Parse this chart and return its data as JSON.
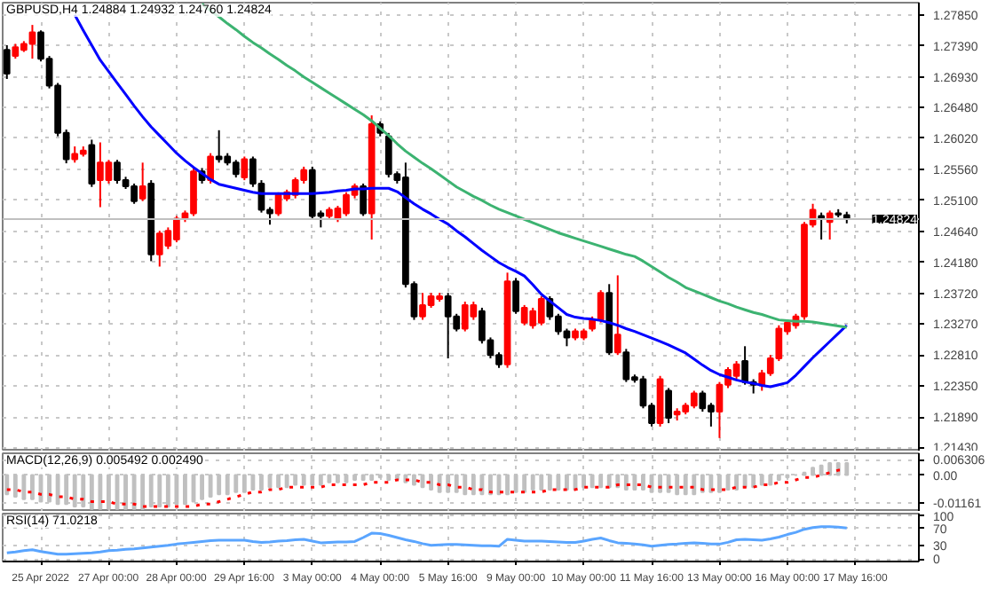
{
  "chart_data": [
    {
      "type": "candlestick",
      "title": "GBPUSD,H4 1.24884 1.24932 1.24760 1.24824",
      "categories": [
        null,
        null,
        null,
        null,
        null,
        null,
        null,
        null,
        null,
        null,
        null,
        null,
        null,
        null,
        null,
        null,
        null,
        null,
        null,
        null,
        null,
        null,
        null,
        null,
        null,
        null,
        null,
        null,
        null,
        null,
        null,
        null,
        null,
        null,
        null,
        null,
        null,
        null,
        null,
        null,
        null,
        null,
        null,
        null,
        null,
        null,
        null,
        null,
        null,
        null,
        null,
        null,
        null,
        null,
        null,
        null,
        null,
        null,
        null,
        null,
        null,
        null,
        null,
        null,
        null,
        null,
        null,
        null,
        null,
        null,
        null,
        null,
        null,
        null,
        null,
        null,
        null,
        null,
        null,
        null,
        null,
        null,
        null,
        null,
        null,
        null,
        null,
        null,
        null,
        null,
        null,
        null,
        null,
        null,
        null,
        null,
        null,
        null,
        null,
        null,
        null,
        null,
        null,
        null,
        null,
        null,
        null,
        null
      ],
      "ohlc": [
        [
          1.2733,
          1.274,
          1.269,
          1.2698
        ],
        [
          1.2724,
          1.2742,
          1.272,
          1.2737
        ],
        [
          1.2733,
          1.2746,
          1.273,
          1.2742
        ],
        [
          1.2742,
          1.277,
          1.272,
          1.2759
        ],
        [
          1.2759,
          1.2762,
          1.2716,
          1.272
        ],
        [
          1.272,
          1.2724,
          1.2676,
          1.268
        ],
        [
          1.268,
          1.2684,
          1.2605,
          1.261
        ],
        [
          1.261,
          1.2615,
          1.2565,
          1.2571
        ],
        [
          1.2571,
          1.259,
          1.2566,
          1.2579
        ],
        [
          1.2579,
          1.259,
          1.2575,
          1.2584
        ],
        [
          1.2592,
          1.26,
          1.253,
          1.2535
        ],
        [
          1.254,
          1.2596,
          1.25,
          1.2566
        ],
        [
          1.254,
          1.257,
          1.2535,
          1.2566
        ],
        [
          1.2566,
          1.257,
          1.2535,
          1.254
        ],
        [
          1.254,
          1.2545,
          1.2527,
          1.2531
        ],
        [
          1.2531,
          1.2535,
          1.2505,
          1.2509
        ],
        [
          1.2513,
          1.2566,
          1.2509,
          1.2531
        ],
        [
          1.2535,
          1.254,
          1.242,
          1.243
        ],
        [
          1.243,
          1.2465,
          1.2412,
          1.2461
        ],
        [
          1.2443,
          1.247,
          1.2438,
          1.2465
        ],
        [
          1.2452,
          1.2487,
          1.2448,
          1.2483
        ],
        [
          1.2483,
          1.2495,
          1.2478,
          1.2491
        ],
        [
          1.2491,
          1.2558,
          1.2487,
          1.2553
        ],
        [
          1.2553,
          1.2558,
          1.2535,
          1.254
        ],
        [
          1.254,
          1.258,
          1.2535,
          1.2575
        ],
        [
          1.2575,
          1.2614,
          1.2566,
          1.2571
        ],
        [
          1.2575,
          1.258,
          1.2562,
          1.2566
        ],
        [
          1.2566,
          1.257,
          1.2544,
          1.2549
        ],
        [
          1.2544,
          1.2575,
          1.254,
          1.2571
        ],
        [
          1.2571,
          1.2575,
          1.253,
          1.2535
        ],
        [
          1.2535,
          1.254,
          1.2492,
          1.2496
        ],
        [
          1.2496,
          1.25,
          1.2474,
          1.2491
        ],
        [
          1.2491,
          1.2522,
          1.2487,
          1.2518
        ],
        [
          1.2513,
          1.2526,
          1.2509,
          1.2522
        ],
        [
          1.2518,
          1.2544,
          1.2513,
          1.254
        ],
        [
          1.254,
          1.256,
          1.2535,
          1.2555
        ],
        [
          1.2555,
          1.256,
          1.2483,
          1.2487
        ],
        [
          1.2491,
          1.2495,
          1.247,
          1.2487
        ],
        [
          1.2487,
          1.25,
          1.2483,
          1.2496
        ],
        [
          1.2483,
          1.2502,
          1.2478,
          1.2498
        ],
        [
          1.2491,
          1.2522,
          1.2487,
          1.2518
        ],
        [
          1.2518,
          1.2535,
          1.2513,
          1.2531
        ],
        [
          1.2531,
          1.2535,
          1.2487,
          1.2491
        ],
        [
          1.2491,
          1.2636,
          1.2452,
          1.2623
        ],
        [
          1.2623,
          1.2627,
          1.2605,
          1.261
        ],
        [
          1.2605,
          1.261,
          1.2544,
          1.2549
        ],
        [
          1.2549,
          1.2553,
          1.2535,
          1.254
        ],
        [
          1.2544,
          1.2566,
          1.2381,
          1.2386
        ],
        [
          1.2386,
          1.239,
          1.2333,
          1.2338
        ],
        [
          1.2338,
          1.2373,
          1.2333,
          1.2355
        ],
        [
          1.2355,
          1.2373,
          1.2351,
          1.2368
        ],
        [
          1.2364,
          1.2373,
          1.236,
          1.2368
        ],
        [
          1.2368,
          1.2373,
          1.2276,
          1.2338
        ],
        [
          1.2338,
          1.2342,
          1.2316,
          1.232
        ],
        [
          1.232,
          1.236,
          1.2316,
          1.2355
        ],
        [
          1.2338,
          1.236,
          1.2333,
          1.2355
        ],
        [
          1.2346,
          1.2351,
          1.2298,
          1.2303
        ],
        [
          1.2303,
          1.2307,
          1.2276,
          1.2281
        ],
        [
          1.2281,
          1.2285,
          1.2262,
          1.2267
        ],
        [
          1.2267,
          1.2403,
          1.2262,
          1.239
        ],
        [
          1.239,
          1.2395,
          1.2342,
          1.2346
        ],
        [
          1.2329,
          1.2355,
          1.2325,
          1.2351
        ],
        [
          1.2325,
          1.2351,
          1.232,
          1.2346
        ],
        [
          1.2329,
          1.2368,
          1.2325,
          1.2364
        ],
        [
          1.2364,
          1.2368,
          1.2333,
          1.2338
        ],
        [
          1.2338,
          1.2342,
          1.2311,
          1.2316
        ],
        [
          1.2316,
          1.232,
          1.2294,
          1.2307
        ],
        [
          1.2307,
          1.232,
          1.2303,
          1.2316
        ],
        [
          1.2307,
          1.232,
          1.2303,
          1.2316
        ],
        [
          1.232,
          1.2338,
          1.2316,
          1.2333
        ],
        [
          1.2333,
          1.2377,
          1.2329,
          1.2373
        ],
        [
          1.2373,
          1.2386,
          1.2281,
          1.2285
        ],
        [
          1.2285,
          1.2399,
          1.2281,
          1.2311
        ],
        [
          1.2285,
          1.229,
          1.2241,
          1.2245
        ],
        [
          1.2248,
          1.2252,
          1.224,
          1.2244
        ],
        [
          1.2245,
          1.225,
          1.2202,
          1.2206
        ],
        [
          1.2206,
          1.221,
          1.2175,
          1.218
        ],
        [
          1.218,
          1.225,
          1.2175,
          1.2245
        ],
        [
          1.2228,
          1.2232,
          1.218,
          1.2188
        ],
        [
          1.2193,
          1.2202,
          1.2184,
          1.2197
        ],
        [
          1.2197,
          1.221,
          1.2193,
          1.2206
        ],
        [
          1.2206,
          1.2228,
          1.2202,
          1.2224
        ],
        [
          1.2224,
          1.2228,
          1.2197,
          1.2202
        ],
        [
          1.2206,
          1.221,
          1.2175,
          1.2197
        ],
        [
          1.2197,
          1.2241,
          1.2158,
          1.2237
        ],
        [
          1.2237,
          1.2263,
          1.2232,
          1.2259
        ],
        [
          1.225,
          1.2272,
          1.2245,
          1.2267
        ],
        [
          1.2272,
          1.2294,
          1.2237,
          1.2241
        ],
        [
          1.2241,
          1.2245,
          1.2224,
          1.2237
        ],
        [
          1.2237,
          1.2259,
          1.2228,
          1.2254
        ],
        [
          1.2254,
          1.2281,
          1.225,
          1.2276
        ],
        [
          1.2276,
          1.2325,
          1.2272,
          1.232
        ],
        [
          1.2316,
          1.2333,
          1.2311,
          1.2329
        ],
        [
          1.2325,
          1.2342,
          1.232,
          1.2338
        ],
        [
          1.2338,
          1.2478,
          1.2333,
          1.2474
        ],
        [
          1.2474,
          1.2505,
          1.247,
          1.2496
        ],
        [
          1.2487,
          1.2492,
          1.2452,
          1.2483
        ],
        [
          1.2478,
          1.2495,
          1.2452,
          1.2491
        ],
        [
          1.2491,
          1.2497,
          1.2485,
          1.2489
        ],
        [
          1.24884,
          1.24932,
          1.2476,
          1.24824
        ],
        null,
        null,
        null,
        null,
        null,
        null,
        null,
        null
      ],
      "colors": [
        "#000000",
        "#ff0000",
        "#ff0000",
        "#ff0000",
        "#000000",
        "#000000",
        "#000000",
        "#000000",
        "#ff0000",
        "#ff0000",
        "#000000",
        "#ff0000",
        "#ff0000",
        "#000000",
        "#000000",
        "#000000",
        "#ff0000",
        "#000000",
        "#ff0000",
        "#ff0000",
        "#ff0000",
        "#ff0000",
        "#ff0000",
        "#000000",
        "#ff0000",
        "#000000",
        "#000000",
        "#000000",
        "#ff0000",
        "#000000",
        "#000000",
        "#000000",
        "#ff0000",
        "#ff0000",
        "#ff0000",
        "#ff0000",
        "#000000",
        "#000000",
        "#ff0000",
        "#ff0000",
        "#ff0000",
        "#ff0000",
        "#000000",
        "#ff0000",
        "#000000",
        "#000000",
        "#000000",
        "#000000",
        "#000000",
        "#ff0000",
        "#ff0000",
        "#ff0000",
        "#000000",
        "#000000",
        "#ff0000",
        "#ff0000",
        "#000000",
        "#000000",
        "#000000",
        "#ff0000",
        "#000000",
        "#ff0000",
        "#ff0000",
        "#ff0000",
        "#000000",
        "#000000",
        "#000000",
        "#ff0000",
        "#ff0000",
        "#ff0000",
        "#ff0000",
        "#000000",
        "#ff0000",
        "#000000",
        "#000000",
        "#000000",
        "#000000",
        "#ff0000",
        "#000000",
        "#ff0000",
        "#ff0000",
        "#ff0000",
        "#000000",
        "#000000",
        "#ff0000",
        "#ff0000",
        "#ff0000",
        "#000000",
        "#000000",
        "#ff0000",
        "#ff0000",
        "#ff0000",
        "#ff0000",
        "#ff0000",
        "#ff0000",
        "#ff0000",
        "#000000",
        "#ff0000",
        "#000000",
        "#000000",
        null,
        null,
        null,
        null,
        null,
        null,
        null,
        null
      ],
      "series": [
        {
          "type": "line",
          "color": "#0000ff",
          "values": [
            null,
            null,
            null,
            null,
            null,
            null,
            null,
            null,
            1.2785,
            1.2762,
            1.274,
            1.2718,
            1.2701,
            1.2684,
            1.2667,
            1.265,
            1.2634,
            1.2619,
            1.2606,
            1.2593,
            1.258,
            1.2569,
            1.2559,
            1.255,
            1.2541,
            1.2534,
            1.2531,
            1.2528,
            1.2525,
            1.2522,
            1.252,
            1.252,
            1.252,
            1.252,
            1.252,
            1.252,
            1.252,
            1.2521,
            1.2522,
            1.2524,
            1.2525,
            1.2527,
            1.2527,
            1.2528,
            1.2528,
            1.2528,
            1.2523,
            1.2514,
            1.2505,
            1.2497,
            1.249,
            1.2482,
            1.2475,
            1.2465,
            1.2456,
            1.2446,
            1.2436,
            1.2427,
            1.2418,
            1.2411,
            1.2405,
            1.2398,
            1.2385,
            1.2371,
            1.2361,
            1.2351,
            1.2341,
            1.2337,
            1.2335,
            1.2334,
            1.2332,
            1.2329,
            1.2325,
            1.232,
            1.2316,
            1.2311,
            1.2306,
            1.2301,
            1.2296,
            1.229,
            1.2284,
            1.2275,
            1.2266,
            1.2258,
            1.2252,
            1.2248,
            1.2244,
            1.2241,
            1.2239,
            1.2236,
            1.2234,
            1.2237,
            1.224,
            1.2251,
            1.2264,
            1.2277,
            1.2289,
            1.2301,
            1.2313,
            1.2325,
            null,
            null,
            null,
            null,
            null,
            null,
            null,
            null
          ]
        },
        {
          "type": "line",
          "color": "#3cb371",
          "values": [
            null,
            null,
            null,
            null,
            null,
            null,
            null,
            null,
            null,
            null,
            null,
            null,
            null,
            null,
            null,
            null,
            null,
            null,
            null,
            null,
            null,
            null,
            null,
            1.2801,
            1.2791,
            1.2782,
            1.2772,
            1.2763,
            1.2753,
            1.2744,
            1.2736,
            1.2727,
            1.2719,
            1.271,
            1.2702,
            1.2693,
            1.2685,
            1.2677,
            1.2669,
            1.2661,
            1.2653,
            1.2645,
            1.2637,
            1.2628,
            1.2617,
            1.2606,
            1.2594,
            1.2583,
            1.2574,
            1.2565,
            1.2557,
            1.2548,
            1.2539,
            1.253,
            1.2523,
            1.2516,
            1.251,
            1.2503,
            1.2497,
            1.2492,
            1.2487,
            1.2482,
            1.2477,
            1.2472,
            1.2467,
            1.2462,
            1.2458,
            1.2454,
            1.245,
            1.2446,
            1.2442,
            1.2438,
            1.2434,
            1.243,
            1.2427,
            1.242,
            1.2412,
            1.2404,
            1.2396,
            1.2389,
            1.2381,
            1.2376,
            1.2371,
            1.2366,
            1.2361,
            1.2357,
            1.2352,
            1.2348,
            1.2344,
            1.2341,
            1.2337,
            1.2333,
            1.2332,
            1.2331,
            1.2331,
            1.233,
            1.2328,
            1.2326,
            1.2324,
            1.2322,
            null,
            null,
            null,
            null,
            null,
            null,
            null,
            null
          ]
        }
      ],
      "ylim": [
        1.2138,
        1.2803
      ],
      "yticks": [
        {
          "value": 1.2785,
          "label": "1.27850"
        },
        {
          "value": 1.2739,
          "label": "1.27390"
        },
        {
          "value": 1.2693,
          "label": "1.26930"
        },
        {
          "value": 1.2648,
          "label": "1.26480"
        },
        {
          "value": 1.2602,
          "label": "1.26020"
        },
        {
          "value": 1.2556,
          "label": "1.25560"
        },
        {
          "value": 1.251,
          "label": "1.25100"
        },
        {
          "value": 1.2464,
          "label": "1.24640"
        },
        {
          "value": 1.2418,
          "label": "1.24180"
        },
        {
          "value": 1.2372,
          "label": "1.23720"
        },
        {
          "value": 1.2327,
          "label": "1.23270"
        },
        {
          "value": 1.2281,
          "label": "1.22810"
        },
        {
          "value": 1.2235,
          "label": "1.22350"
        },
        {
          "value": 1.2189,
          "label": "1.21890"
        },
        {
          "value": 1.2143,
          "label": "1.21430"
        }
      ],
      "ref_lines": [
        {
          "axis": "y",
          "value": 1.24824,
          "label": "1.24824",
          "color": "#c0c0c0"
        }
      ],
      "grid": true,
      "tick_labels": "y"
    },
    {
      "type": "bar",
      "title": "MACD(12,26,9) 0.005492 0.002490",
      "categories": [
        null,
        null,
        null,
        null,
        null,
        null,
        null,
        null,
        null,
        null,
        null,
        null,
        null,
        null,
        null,
        null,
        null,
        null,
        null,
        null,
        null,
        null,
        null,
        null,
        null,
        null,
        null,
        null,
        null,
        null,
        null,
        null,
        null,
        null,
        null,
        null,
        null,
        null,
        null,
        null,
        null,
        null,
        null,
        null,
        null,
        null,
        null,
        null,
        null,
        null,
        null,
        null,
        null,
        null,
        null,
        null,
        null,
        null,
        null,
        null,
        null,
        null,
        null,
        null,
        null,
        null,
        null,
        null,
        null,
        null,
        null,
        null,
        null,
        null,
        null,
        null,
        null,
        null,
        null,
        null,
        null,
        null,
        null,
        null,
        null,
        null,
        null,
        null,
        null,
        null,
        null,
        null,
        null,
        null,
        null,
        null,
        null,
        null,
        null,
        null,
        null,
        null,
        null,
        null,
        null,
        null,
        null,
        null
      ],
      "series": [
        {
          "type": "bar",
          "color": "#c0c0c0",
          "values": [
            -0.008,
            -0.009,
            -0.01,
            -0.01,
            -0.011,
            -0.011,
            -0.012,
            -0.012,
            -0.013,
            -0.013,
            -0.014,
            -0.014,
            -0.014,
            -0.014,
            -0.014,
            -0.014,
            -0.014,
            -0.013,
            -0.013,
            -0.013,
            -0.012,
            -0.012,
            -0.011,
            -0.01,
            -0.009,
            -0.008,
            -0.008,
            -0.007,
            -0.007,
            -0.006,
            -0.006,
            -0.005,
            -0.005,
            -0.005,
            -0.004,
            -0.004,
            -0.004,
            -0.004,
            -0.003,
            -0.003,
            -0.003,
            -0.002,
            -0.002,
            -0.002,
            -0.001,
            -0.002,
            -0.002,
            -0.003,
            -0.004,
            -0.005,
            -0.006,
            -0.007,
            -0.007,
            -0.007,
            -0.008,
            -0.008,
            -0.008,
            -0.008,
            -0.008,
            -0.008,
            -0.007,
            -0.007,
            -0.006,
            -0.006,
            -0.006,
            -0.006,
            -0.006,
            -0.006,
            -0.005,
            -0.005,
            -0.005,
            -0.005,
            -0.005,
            -0.006,
            -0.006,
            -0.006,
            -0.007,
            -0.007,
            -0.007,
            -0.008,
            -0.008,
            -0.008,
            -0.007,
            -0.007,
            -0.007,
            -0.006,
            -0.006,
            -0.005,
            -0.005,
            -0.004,
            -0.004,
            -0.002,
            -0.001,
            0.0,
            0.001,
            0.003,
            0.004,
            0.005,
            0.005,
            0.005,
            null,
            null,
            null,
            null,
            null,
            null,
            null,
            null
          ]
        },
        {
          "type": "line",
          "color": "#ff0000",
          "line_style": "dotted",
          "values": [
            -0.006,
            -0.006,
            -0.007,
            -0.007,
            -0.008,
            -0.008,
            -0.009,
            -0.009,
            -0.01,
            -0.01,
            -0.011,
            -0.011,
            -0.011,
            -0.012,
            -0.012,
            -0.012,
            -0.013,
            -0.013,
            -0.013,
            -0.013,
            -0.013,
            -0.013,
            -0.013,
            -0.012,
            -0.012,
            -0.011,
            -0.01,
            -0.009,
            -0.008,
            -0.007,
            -0.007,
            -0.006,
            -0.006,
            -0.005,
            -0.005,
            -0.005,
            -0.005,
            -0.005,
            -0.004,
            -0.004,
            -0.004,
            -0.004,
            -0.004,
            -0.003,
            -0.003,
            -0.003,
            -0.002,
            -0.002,
            -0.002,
            -0.003,
            -0.003,
            -0.004,
            -0.004,
            -0.005,
            -0.005,
            -0.006,
            -0.006,
            -0.007,
            -0.007,
            -0.007,
            -0.007,
            -0.007,
            -0.007,
            -0.007,
            -0.006,
            -0.006,
            -0.006,
            -0.006,
            -0.005,
            -0.005,
            -0.005,
            -0.005,
            -0.004,
            -0.004,
            -0.004,
            -0.004,
            -0.005,
            -0.005,
            -0.005,
            -0.005,
            -0.005,
            -0.005,
            -0.006,
            -0.006,
            -0.006,
            -0.006,
            -0.005,
            -0.005,
            -0.005,
            -0.004,
            -0.004,
            -0.003,
            -0.003,
            -0.002,
            -0.001,
            -0.001,
            0.0,
            0.001,
            0.002,
            0.002,
            null,
            null,
            null,
            null,
            null,
            null,
            null,
            null
          ]
        }
      ],
      "ylim": [
        -0.0152,
        0.009
      ],
      "yticks": [
        0.006306,
        {
          "value": 0,
          "label": "0.00"
        },
        -0.01161
      ],
      "grid": true,
      "tick_labels": "y"
    },
    {
      "type": "line",
      "title": "RSI(14) 71.0218",
      "categories": [
        null,
        null,
        null,
        null,
        "25 Apr 2022",
        null,
        null,
        null,
        null,
        null,
        null,
        null,
        "27 Apr 00:00",
        null,
        null,
        null,
        null,
        null,
        null,
        null,
        "28 Apr 00:00",
        null,
        null,
        null,
        null,
        null,
        null,
        null,
        "29 Apr 16:00",
        null,
        null,
        null,
        null,
        null,
        null,
        null,
        "3 May 00:00",
        null,
        null,
        null,
        null,
        null,
        null,
        null,
        "4 May 00:00",
        null,
        null,
        null,
        null,
        null,
        null,
        null,
        "5 May 16:00",
        null,
        null,
        null,
        null,
        null,
        null,
        null,
        "9 May 00:00",
        null,
        null,
        null,
        null,
        null,
        null,
        null,
        "10 May 00:00",
        null,
        null,
        null,
        null,
        null,
        null,
        null,
        "11 May 16:00",
        null,
        null,
        null,
        null,
        null,
        null,
        null,
        "13 May 00:00",
        null,
        null,
        null,
        null,
        null,
        null,
        null,
        "16 May 00:00",
        null,
        null,
        null,
        null,
        null,
        null,
        null,
        "17 May 16:00",
        null,
        null,
        null,
        null,
        null,
        null,
        null
      ],
      "series": [
        {
          "type": "line",
          "color": "#5aa5ff",
          "values": [
            14,
            16,
            19,
            21,
            17,
            14,
            11,
            11,
            12,
            13,
            14,
            16,
            19,
            20,
            22,
            23,
            25,
            27,
            29,
            31,
            34,
            36,
            38,
            40,
            42,
            43,
            43,
            43,
            43,
            40,
            38,
            39,
            41,
            42,
            44,
            45,
            41,
            37,
            38,
            39,
            39,
            40,
            49,
            59,
            58,
            54,
            49,
            44,
            40,
            35,
            31,
            32,
            33,
            33,
            32,
            31,
            30,
            30,
            29,
            45,
            43,
            41,
            41,
            41,
            40,
            39,
            38,
            38,
            41,
            45,
            48,
            42,
            37,
            36,
            34,
            32,
            29,
            31,
            33,
            34,
            36,
            37,
            36,
            34,
            34,
            38,
            44,
            45,
            44,
            43,
            46,
            50,
            56,
            61,
            68,
            72,
            74,
            74,
            73,
            71,
            null,
            null,
            null,
            null,
            null,
            null,
            null,
            null
          ]
        }
      ],
      "ylim": [
        -6,
        104
      ],
      "yticks": [
        100,
        70,
        30,
        0
      ],
      "grid": true
    }
  ]
}
